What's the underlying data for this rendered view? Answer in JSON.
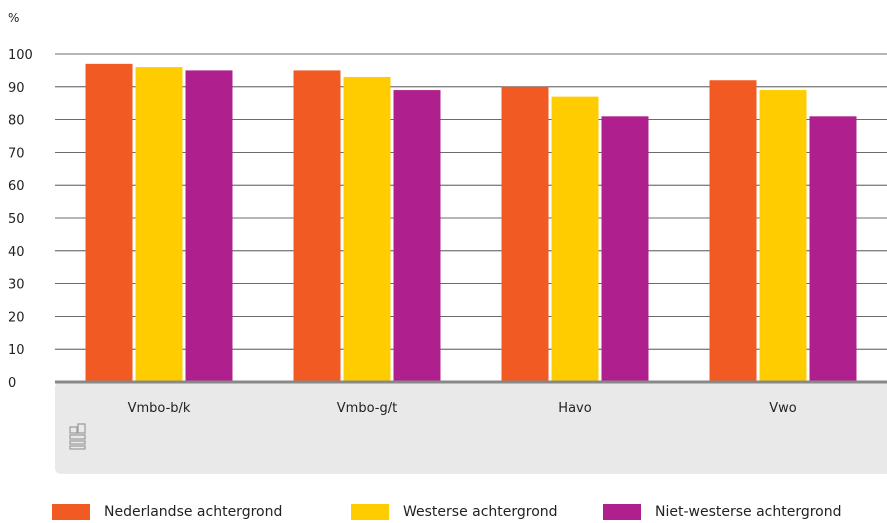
{
  "chart_data": {
    "type": "bar",
    "unit_label": "%",
    "categories": [
      "Vmbo-b/k",
      "Vmbo-g/t",
      "Havo",
      "Vwo"
    ],
    "series": [
      {
        "name": "Nederlandse achtergrond",
        "color": "#f15a22",
        "values": [
          97,
          95,
          90,
          92
        ]
      },
      {
        "name": "Westerse achtergrond",
        "color": "#ffcc00",
        "values": [
          96,
          93,
          87,
          89
        ]
      },
      {
        "name": "Niet-westerse achtergrond",
        "color": "#af208e",
        "values": [
          95,
          89,
          81,
          81
        ]
      }
    ],
    "yticks": [
      "0",
      "10",
      "20",
      "30",
      "40",
      "50",
      "60",
      "70",
      "80",
      "90",
      "100"
    ],
    "ylim": [
      0,
      100
    ],
    "grid": true,
    "legend_position": "bottom",
    "axis_band_color": "#e9e9e9",
    "baseline_color": "#888888",
    "logo": "cbs-logo"
  }
}
